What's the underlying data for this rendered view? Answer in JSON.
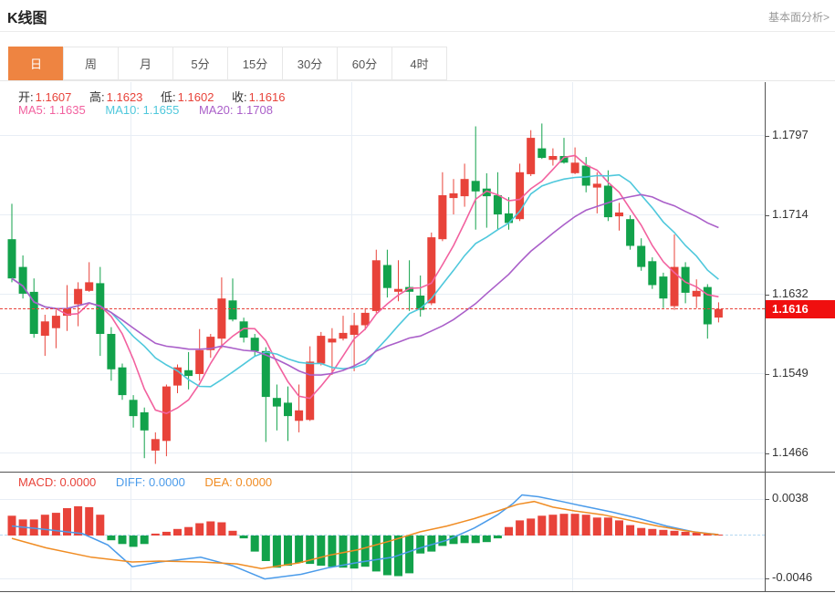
{
  "header": {
    "title": "K线图",
    "link": "基本面分析>"
  },
  "tabs": {
    "active": "日",
    "items": [
      {
        "label": "日"
      },
      {
        "label": "周"
      },
      {
        "label": "月"
      },
      {
        "label": "5分"
      },
      {
        "label": "15分"
      },
      {
        "label": "30分"
      },
      {
        "label": "60分"
      },
      {
        "label": "4时"
      }
    ]
  },
  "ohlc": {
    "open_label": "开:",
    "open": "1.1607",
    "high_label": "高:",
    "high": "1.1623",
    "low_label": "低:",
    "low": "1.1602",
    "close_label": "收:",
    "close": "1.1616"
  },
  "ma": {
    "ma5_label": "MA5:",
    "ma5": "1.1635",
    "ma10_label": "MA10:",
    "ma10": "1.1655",
    "ma20_label": "MA20:",
    "ma20": "1.1708"
  },
  "macd_readout": {
    "macd_label": "MACD:",
    "macd": "0.0000",
    "diff_label": "DIFF:",
    "diff": "0.0000",
    "dea_label": "DEA:",
    "dea": "0.0000"
  },
  "price_axis_ticks": [
    "1.1797",
    "1.1714",
    "1.1632",
    "1.1549",
    "1.1466"
  ],
  "macd_axis_ticks": [
    "0.0038",
    "-0.0046"
  ],
  "last_price_badge": "1.1616",
  "colors": {
    "up": "#e8433a",
    "down": "#12a24b",
    "ma5": "#f2619f",
    "ma10": "#4fc8dc",
    "ma20": "#aa5fc9",
    "diff": "#4a9bea",
    "dea": "#f08c23",
    "active_tab": "#ee8441",
    "badge": "#f00f0f",
    "current_price_line": "#e8433a"
  },
  "chart_data": {
    "type": "candlestick",
    "title": "K线图",
    "legend": [
      "MA5",
      "MA10",
      "MA20"
    ],
    "price_axis": {
      "ticks": [
        1.1797,
        1.1714,
        1.1632,
        1.1549,
        1.1466
      ],
      "last_price": 1.1616
    },
    "candles": [
      [
        1.1689,
        1.1726,
        1.1644,
        1.1648
      ],
      [
        1.166,
        1.1672,
        1.1627,
        1.1632
      ],
      [
        1.1634,
        1.1648,
        1.1586,
        1.159
      ],
      [
        1.1588,
        1.161,
        1.1567,
        1.1603
      ],
      [
        1.1596,
        1.1615,
        1.1575,
        1.1609
      ],
      [
        1.1609,
        1.1641,
        1.1593,
        1.1617
      ],
      [
        1.1621,
        1.1644,
        1.1598,
        1.1637
      ],
      [
        1.1635,
        1.1665,
        1.1634,
        1.1644
      ],
      [
        1.1643,
        1.166,
        1.1567,
        1.159
      ],
      [
        1.159,
        1.1597,
        1.1541,
        1.1553
      ],
      [
        1.1555,
        1.1559,
        1.1521,
        1.1526
      ],
      [
        1.1521,
        1.1526,
        1.1492,
        1.1504
      ],
      [
        1.1508,
        1.1513,
        1.146,
        1.1489
      ],
      [
        1.1468,
        1.1487,
        1.1454,
        1.148
      ],
      [
        1.1478,
        1.1537,
        1.1462,
        1.1535
      ],
      [
        1.1536,
        1.1558,
        1.1528,
        1.1555
      ],
      [
        1.1552,
        1.1571,
        1.1532,
        1.1546
      ],
      [
        1.1548,
        1.1595,
        1.1541,
        1.1573
      ],
      [
        1.1573,
        1.159,
        1.1565,
        1.1587
      ],
      [
        1.1585,
        1.1649,
        1.1575,
        1.1627
      ],
      [
        1.1625,
        1.1648,
        1.1603,
        1.1605
      ],
      [
        1.1603,
        1.1607,
        1.1581,
        1.1586
      ],
      [
        1.1586,
        1.159,
        1.1567,
        1.1572
      ],
      [
        1.1572,
        1.1576,
        1.1477,
        1.1524
      ],
      [
        1.1523,
        1.1537,
        1.1489,
        1.1514
      ],
      [
        1.1518,
        1.1535,
        1.1478,
        1.1504
      ],
      [
        1.1499,
        1.1537,
        1.1487,
        1.151
      ],
      [
        1.15,
        1.1577,
        1.1499,
        1.1561
      ],
      [
        1.1559,
        1.1592,
        1.1557,
        1.1588
      ],
      [
        1.1581,
        1.1596,
        1.1547,
        1.1585
      ],
      [
        1.1585,
        1.1609,
        1.1583,
        1.1591
      ],
      [
        1.1589,
        1.1612,
        1.1551,
        1.1599
      ],
      [
        1.1599,
        1.1617,
        1.1594,
        1.1612
      ],
      [
        1.1614,
        1.1678,
        1.1612,
        1.1667
      ],
      [
        1.1662,
        1.1678,
        1.1628,
        1.1638
      ],
      [
        1.1634,
        1.1667,
        1.1624,
        1.1637
      ],
      [
        1.1639,
        1.1667,
        1.1614,
        1.1634
      ],
      [
        1.163,
        1.1651,
        1.1608,
        1.1615
      ],
      [
        1.1622,
        1.1696,
        1.162,
        1.1691
      ],
      [
        1.1689,
        1.1759,
        1.1687,
        1.1735
      ],
      [
        1.1732,
        1.1752,
        1.1715,
        1.1737
      ],
      [
        1.1734,
        1.1768,
        1.1723,
        1.1752
      ],
      [
        1.175,
        1.1807,
        1.1699,
        1.1739
      ],
      [
        1.1742,
        1.1758,
        1.1701,
        1.1734
      ],
      [
        1.1735,
        1.1759,
        1.1699,
        1.1715
      ],
      [
        1.1716,
        1.1733,
        1.1699,
        1.1706
      ],
      [
        1.171,
        1.1768,
        1.1708,
        1.1759
      ],
      [
        1.1757,
        1.1803,
        1.1755,
        1.1795
      ],
      [
        1.1784,
        1.181,
        1.1773,
        1.1774
      ],
      [
        1.1772,
        1.1784,
        1.1766,
        1.1776
      ],
      [
        1.1776,
        1.1795,
        1.1768,
        1.1769
      ],
      [
        1.1758,
        1.1785,
        1.1757,
        1.1769
      ],
      [
        1.1766,
        1.1775,
        1.1738,
        1.1745
      ],
      [
        1.1743,
        1.1759,
        1.1716,
        1.1747
      ],
      [
        1.1745,
        1.1761,
        1.1708,
        1.1712
      ],
      [
        1.1713,
        1.1727,
        1.1698,
        1.1717
      ],
      [
        1.171,
        1.1714,
        1.1678,
        1.1682
      ],
      [
        1.1682,
        1.169,
        1.1656,
        1.166
      ],
      [
        1.1666,
        1.167,
        1.1637,
        1.1641
      ],
      [
        1.165,
        1.1654,
        1.1617,
        1.1627
      ],
      [
        1.1619,
        1.1694,
        1.1615,
        1.166
      ],
      [
        1.166,
        1.1665,
        1.1622,
        1.1633
      ],
      [
        1.1629,
        1.1647,
        1.1617,
        1.1635
      ],
      [
        1.1639,
        1.1642,
        1.1585,
        1.16
      ],
      [
        1.1607,
        1.1623,
        1.1602,
        1.1616
      ]
    ],
    "macd": {
      "axis": {
        "max": 0.0038,
        "min": -0.0046
      },
      "hist": [
        0.0021,
        0.0017,
        0.0017,
        0.0022,
        0.0024,
        0.0029,
        0.0031,
        0.003,
        0.0022,
        -0.0005,
        -0.0009,
        -0.0012,
        -0.0009,
        0.0002,
        0.0004,
        0.0007,
        0.0009,
        0.0013,
        0.0015,
        0.0014,
        0.0005,
        -0.0003,
        -0.0017,
        -0.0027,
        -0.0034,
        -0.0032,
        -0.0029,
        -0.003,
        -0.0032,
        -0.0033,
        -0.0034,
        -0.0035,
        -0.0033,
        -0.0038,
        -0.0042,
        -0.0043,
        -0.004,
        -0.0019,
        -0.0017,
        -0.0011,
        -0.0009,
        -0.0008,
        -0.0008,
        -0.0007,
        -0.0003,
        0.0009,
        0.0016,
        0.0018,
        0.0021,
        0.0022,
        0.0023,
        0.0023,
        0.0022,
        0.0019,
        0.0019,
        0.0016,
        0.0011,
        0.0008,
        0.0007,
        0.0006,
        0.0005,
        0.0004,
        0.0003,
        0.0002,
        0.0001
      ],
      "diff": [
        [
          0,
          0.001
        ],
        [
          2.6,
          0.0007
        ],
        [
          6.4,
          0.0002
        ],
        [
          8.7,
          -0.001
        ],
        [
          10.9,
          -0.0033
        ],
        [
          13.4,
          -0.0028
        ],
        [
          17.1,
          -0.0023
        ],
        [
          20,
          -0.0032
        ],
        [
          22.9,
          -0.0046
        ],
        [
          26.2,
          -0.0041
        ],
        [
          28.7,
          -0.0034
        ],
        [
          31.6,
          -0.0028
        ],
        [
          34.5,
          -0.0023
        ],
        [
          37,
          -0.0013
        ],
        [
          39.4,
          -0.0005
        ],
        [
          41.9,
          0.0008
        ],
        [
          44,
          0.0022
        ],
        [
          45.4,
          0.0034
        ],
        [
          46.2,
          0.0043
        ],
        [
          47.7,
          0.0041
        ],
        [
          49.8,
          0.0036
        ],
        [
          51.8,
          0.0031
        ],
        [
          54.3,
          0.0025
        ],
        [
          56.8,
          0.0018
        ],
        [
          59.3,
          0.001
        ],
        [
          61.7,
          0.0004
        ],
        [
          64,
          0.0001
        ]
      ],
      "dea": [
        [
          0,
          -0.0003
        ],
        [
          3.1,
          -0.0013
        ],
        [
          7.2,
          -0.0023
        ],
        [
          10.9,
          -0.0028
        ],
        [
          13.4,
          -0.0027
        ],
        [
          17.1,
          -0.0028
        ],
        [
          20.4,
          -0.003
        ],
        [
          22.6,
          -0.0035
        ],
        [
          26,
          -0.0029
        ],
        [
          28.7,
          -0.0021
        ],
        [
          31.4,
          -0.0015
        ],
        [
          34.2,
          -0.0006
        ],
        [
          37,
          0.0004
        ],
        [
          39.4,
          0.001
        ],
        [
          41.9,
          0.0018
        ],
        [
          44,
          0.0026
        ],
        [
          45.8,
          0.0033
        ],
        [
          47.3,
          0.0036
        ],
        [
          49,
          0.003
        ],
        [
          51,
          0.0026
        ],
        [
          53.5,
          0.0022
        ],
        [
          56,
          0.0016
        ],
        [
          58.5,
          0.001
        ],
        [
          61,
          0.0005
        ],
        [
          63,
          0.0002
        ],
        [
          64,
          0.0001
        ]
      ]
    }
  }
}
